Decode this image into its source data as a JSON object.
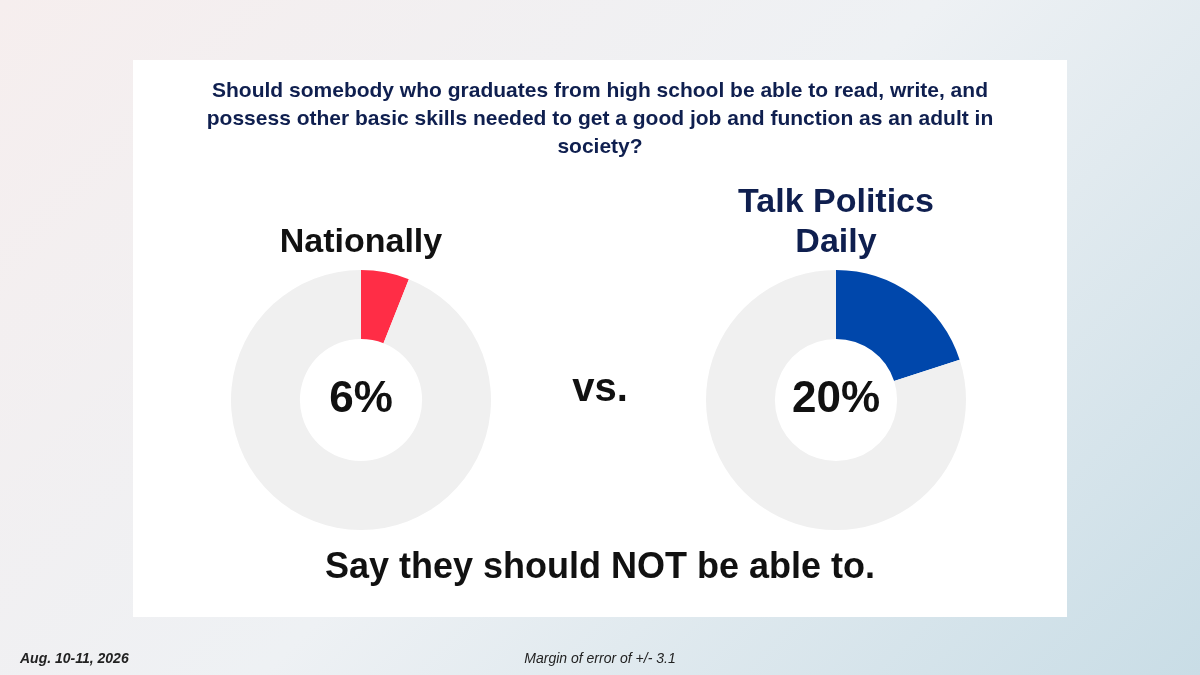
{
  "chart_data": [
    {
      "type": "other",
      "title": "Should somebody who graduates from high school be able to read, write, and possess other basic skills needed to get a good job and function as an adult in society?",
      "annotations": [
        "vs.",
        "Say they should NOT be able to.",
        "Aug. 10-11, 2026",
        "Margin of error of +/- 3.1"
      ]
    },
    {
      "type": "donut",
      "title": "Nationally",
      "categories": [
        null,
        null
      ],
      "values": [
        6,
        94
      ],
      "colors": [
        "#ff2d46",
        "#f0f0f0"
      ],
      "value_labels": [
        "6%",
        null
      ]
    },
    {
      "type": "donut",
      "title": "Talk Politics Daily",
      "categories": [
        null,
        null
      ],
      "values": [
        20,
        80
      ],
      "colors": [
        "#0047ab",
        "#f0f0f0"
      ],
      "value_labels": [
        "20%",
        null
      ]
    }
  ]
}
